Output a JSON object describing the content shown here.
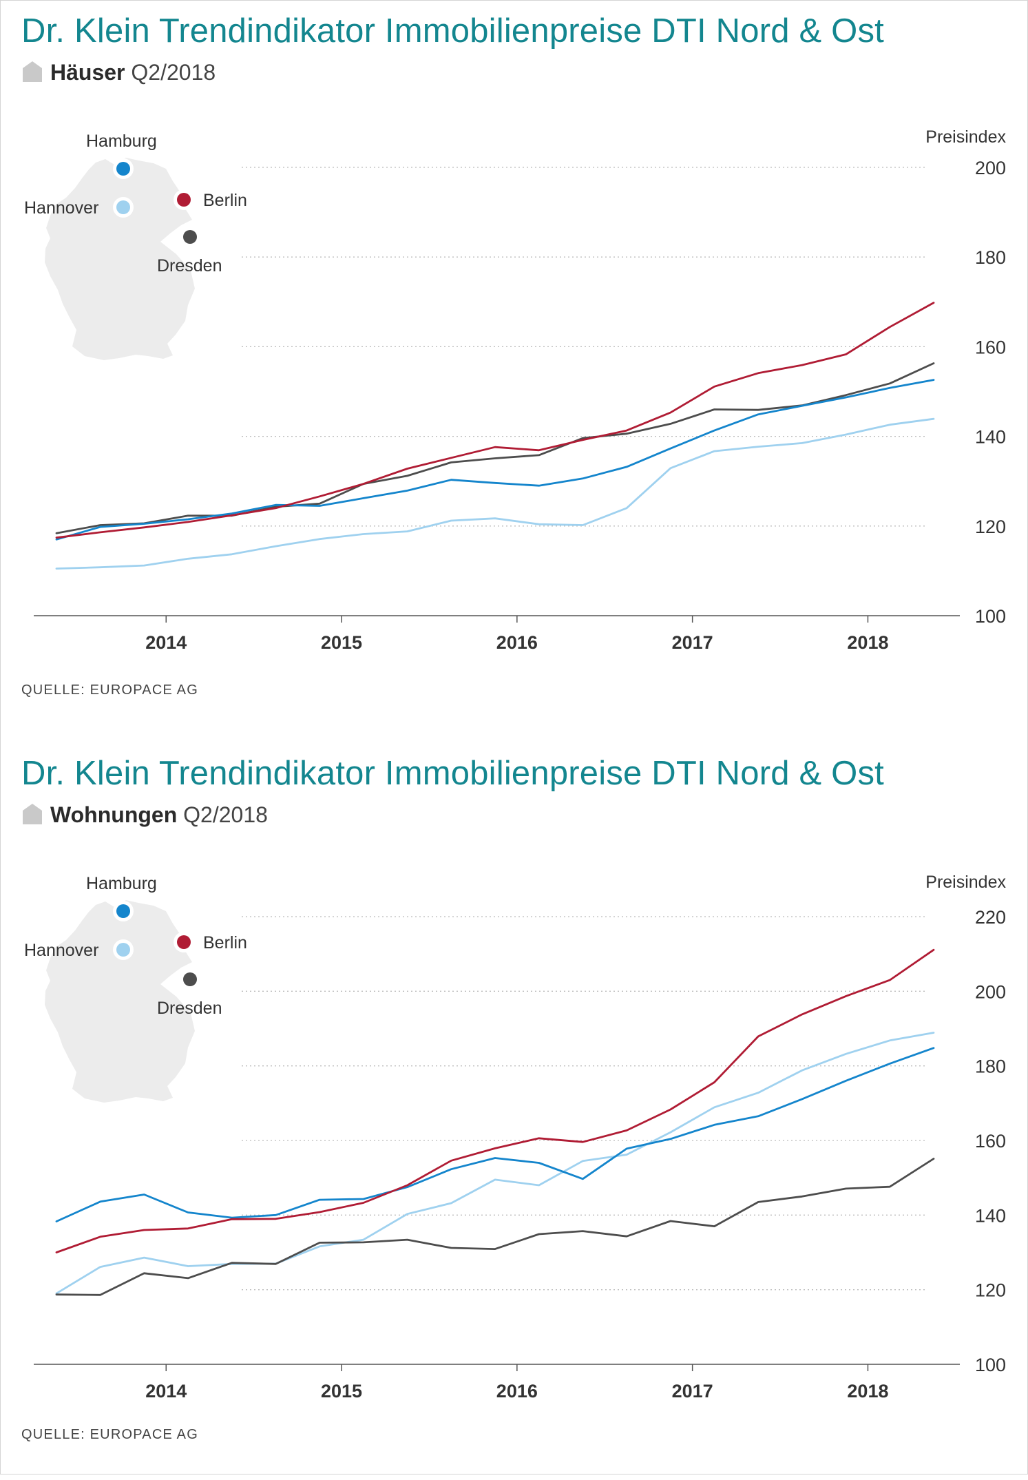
{
  "colors": {
    "title": "#13868f",
    "Hamburg": "#1485cc",
    "Hannover": "#9fd1ef",
    "Berlin": "#b01c34",
    "Dresden": "#4d4d4d",
    "map": "#ececec",
    "grid": "#bbbbbb"
  },
  "panels": [
    {
      "title": "Dr. Klein Trendindikator Immobilienpreise DTI Nord & Ost",
      "subtitle_bold": "Häuser",
      "subtitle_period": "Q2/2018",
      "source": "QUELLE: EUROPACE AG",
      "map": {
        "icon": "germany-map-icon",
        "cities": {
          "Hamburg": "Hamburg",
          "Hannover": "Hannover",
          "Berlin": "Berlin",
          "Dresden": "Dresden"
        }
      }
    },
    {
      "title": "Dr. Klein Trendindikator Immobilienpreise DTI Nord & Ost",
      "subtitle_bold": "Wohnungen",
      "subtitle_period": "Q2/2018",
      "source": "QUELLE: EUROPACE AG",
      "map": {
        "icon": "germany-map-icon",
        "cities": {
          "Hamburg": "Hamburg",
          "Hannover": "Hannover",
          "Berlin": "Berlin",
          "Dresden": "Dresden"
        }
      }
    }
  ],
  "chart_data": [
    {
      "type": "line",
      "title": "Dr. Klein Trendindikator Immobilienpreise DTI Nord & Ost",
      "subtitle": "Häuser Q2/2018",
      "ylabel": "Preisindex",
      "ylim": [
        100,
        200
      ],
      "yticks": [
        100,
        120,
        140,
        160,
        180,
        200
      ],
      "xlim": [
        2013.35,
        2018.5
      ],
      "xticks": [
        2014,
        2015,
        2016,
        2017,
        2018
      ],
      "xtick_labels": [
        "2014",
        "2015",
        "2016",
        "2017",
        "2018"
      ],
      "grid": "horizontal dotted",
      "x": [
        2013.375,
        2013.625,
        2013.875,
        2014.125,
        2014.375,
        2014.625,
        2014.875,
        2015.125,
        2015.375,
        2015.625,
        2015.875,
        2016.125,
        2016.375,
        2016.625,
        2016.875,
        2017.125,
        2017.375,
        2017.625,
        2017.875,
        2018.125,
        2018.375
      ],
      "series": [
        {
          "name": "Hamburg",
          "values": [
            117.0,
            119.8,
            120.5,
            121.5,
            122.8,
            124.7,
            124.5,
            126.2,
            127.9,
            130.3,
            129.6,
            129.0,
            130.6,
            133.2,
            137.3,
            141.3,
            144.9,
            146.8,
            148.7,
            150.8,
            152.6
          ]
        },
        {
          "name": "Hannover",
          "values": [
            110.5,
            110.8,
            111.2,
            112.7,
            113.7,
            115.5,
            117.1,
            118.2,
            118.8,
            121.2,
            121.7,
            120.4,
            120.2,
            124.0,
            132.9,
            136.7,
            137.7,
            138.5,
            140.4,
            142.6,
            143.9
          ]
        },
        {
          "name": "Berlin",
          "values": [
            117.4,
            118.6,
            119.7,
            120.9,
            122.4,
            124.0,
            126.6,
            129.4,
            132.8,
            135.2,
            137.6,
            136.9,
            139.2,
            141.3,
            145.3,
            151.1,
            154.1,
            155.9,
            158.3,
            164.4,
            169.8
          ]
        },
        {
          "name": "Dresden",
          "values": [
            118.4,
            120.2,
            120.6,
            122.3,
            122.3,
            124.3,
            125.0,
            129.4,
            131.2,
            134.2,
            135.1,
            135.8,
            139.6,
            140.6,
            142.8,
            146.0,
            145.9,
            146.9,
            149.2,
            151.8,
            156.3
          ]
        }
      ]
    },
    {
      "type": "line",
      "title": "Dr. Klein Trendindikator Immobilienpreise DTI Nord & Ost",
      "subtitle": "Wohnungen Q2/2018",
      "ylabel": "Preisindex",
      "ylim": [
        100,
        220
      ],
      "yticks": [
        100,
        120,
        140,
        160,
        180,
        200,
        220
      ],
      "xlim": [
        2013.35,
        2018.5
      ],
      "xticks": [
        2014,
        2015,
        2016,
        2017,
        2018
      ],
      "xtick_labels": [
        "2014",
        "2015",
        "2016",
        "2017",
        "2018"
      ],
      "grid": "horizontal dotted",
      "x": [
        2013.375,
        2013.625,
        2013.875,
        2014.125,
        2014.375,
        2014.625,
        2014.875,
        2015.125,
        2015.375,
        2015.625,
        2015.875,
        2016.125,
        2016.375,
        2016.625,
        2016.875,
        2017.125,
        2017.375,
        2017.625,
        2017.875,
        2018.125,
        2018.375
      ],
      "series": [
        {
          "name": "Hamburg",
          "values": [
            138.3,
            143.6,
            145.5,
            140.7,
            139.3,
            140.0,
            144.1,
            144.3,
            147.5,
            152.3,
            155.3,
            154.0,
            149.7,
            157.8,
            160.4,
            164.2,
            166.5,
            171.1,
            176.0,
            180.6,
            184.8
          ]
        },
        {
          "name": "Hannover",
          "values": [
            119.0,
            126.1,
            128.6,
            126.3,
            126.9,
            127.0,
            131.6,
            133.4,
            140.3,
            143.2,
            149.5,
            148.0,
            154.5,
            156.2,
            162.2,
            168.9,
            172.8,
            178.8,
            183.2,
            186.8,
            188.9
          ]
        },
        {
          "name": "Berlin",
          "values": [
            130.0,
            134.2,
            136.0,
            136.4,
            138.9,
            139.0,
            140.8,
            143.3,
            148.0,
            154.6,
            157.9,
            160.6,
            159.6,
            162.7,
            168.3,
            175.6,
            187.9,
            193.8,
            198.7,
            203.0,
            211.1
          ]
        },
        {
          "name": "Dresden",
          "values": [
            118.7,
            118.6,
            124.4,
            123.1,
            127.2,
            126.9,
            132.6,
            132.7,
            133.4,
            131.2,
            130.9,
            134.9,
            135.7,
            134.3,
            138.4,
            137.0,
            143.5,
            145.0,
            147.1,
            147.6,
            155.1
          ]
        }
      ]
    }
  ]
}
